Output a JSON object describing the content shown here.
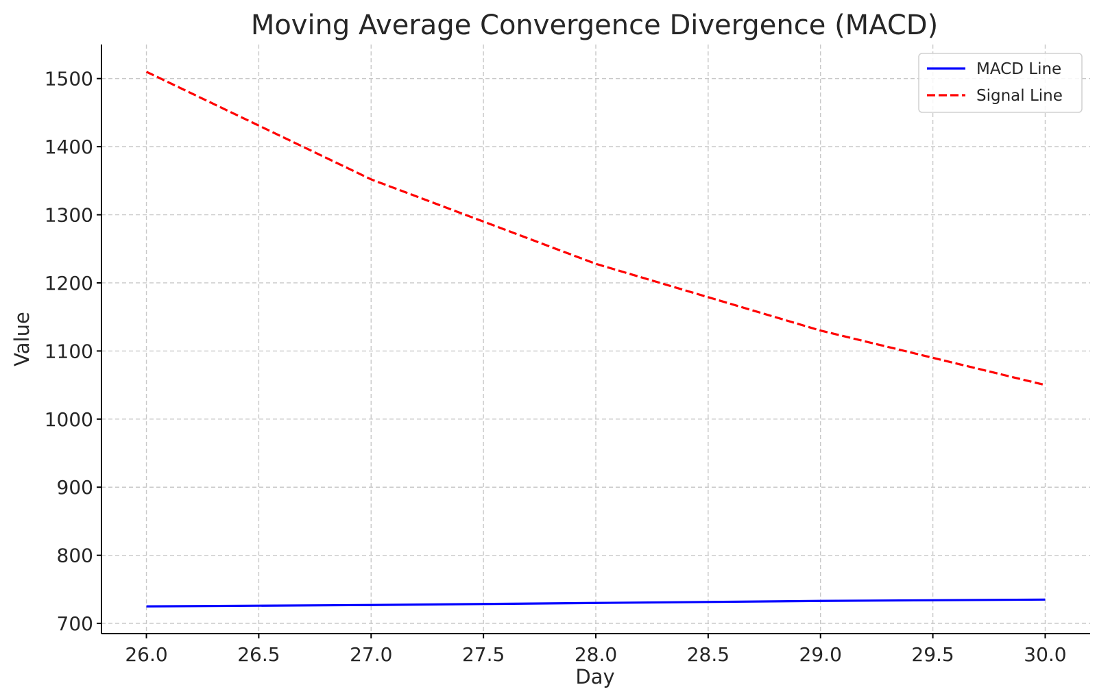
{
  "chart_data": {
    "type": "line",
    "title": "Moving Average Convergence Divergence (MACD)",
    "xlabel": "Day",
    "ylabel": "Value",
    "x": [
      26,
      27,
      28,
      29,
      30
    ],
    "xlim": [
      25.8,
      30.2
    ],
    "ylim": [
      685,
      1550
    ],
    "x_ticks": [
      26.0,
      26.5,
      27.0,
      27.5,
      28.0,
      28.5,
      29.0,
      29.5,
      30.0
    ],
    "x_tick_labels": [
      "26.0",
      "26.5",
      "27.0",
      "27.5",
      "28.0",
      "28.5",
      "29.0",
      "29.5",
      "30.0"
    ],
    "y_ticks": [
      700,
      800,
      900,
      1000,
      1100,
      1200,
      1300,
      1400,
      1500
    ],
    "y_tick_labels": [
      "700",
      "800",
      "900",
      "1000",
      "1100",
      "1200",
      "1300",
      "1400",
      "1500"
    ],
    "grid": true,
    "legend_position": "top-right",
    "series": [
      {
        "name": "MACD Line",
        "values": [
          725,
          727,
          730,
          733,
          735
        ],
        "color": "#0000ff",
        "style": "solid"
      },
      {
        "name": "Signal Line",
        "values": [
          1510,
          1352,
          1228,
          1130,
          1050
        ],
        "color": "#ff0000",
        "style": "dashed"
      }
    ]
  }
}
